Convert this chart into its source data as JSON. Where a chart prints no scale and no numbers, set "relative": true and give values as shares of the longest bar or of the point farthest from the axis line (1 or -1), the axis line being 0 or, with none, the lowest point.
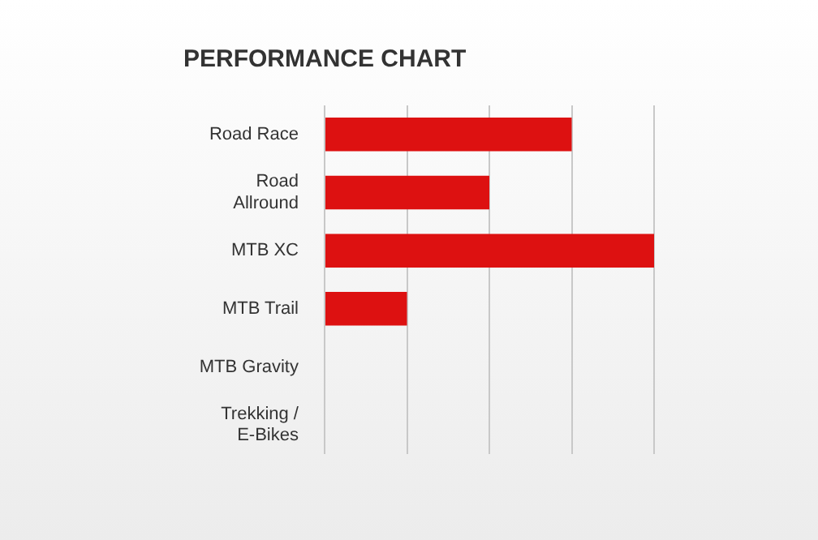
{
  "chart_data": {
    "type": "bar",
    "orientation": "horizontal",
    "relative": true,
    "title": "PERFORMANCE CHART",
    "categories": [
      "Road Race",
      "Road\nAllround",
      "MTB XC",
      "MTB Trail",
      "MTB Gravity",
      "Trekking /\nE-Bikes"
    ],
    "values": [
      0.75,
      0.5,
      1,
      0.25,
      0,
      0
    ],
    "color": "#dd1111",
    "grid": "x",
    "legend": false
  }
}
